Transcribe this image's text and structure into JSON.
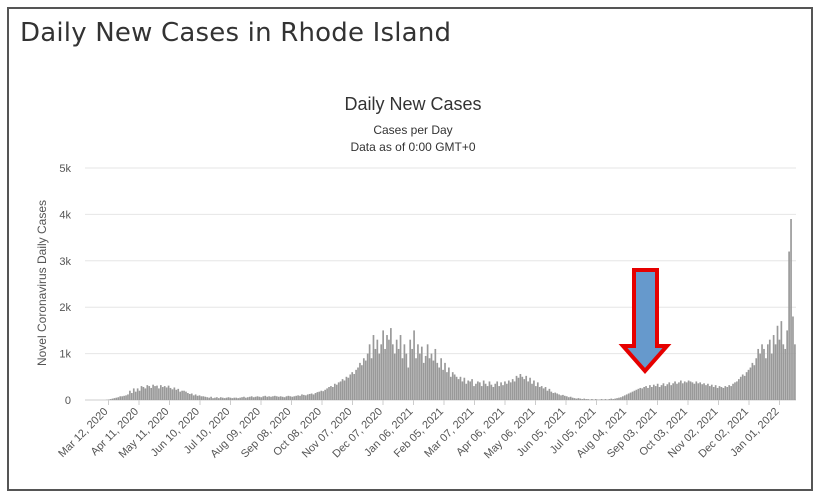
{
  "page": {
    "title": "Daily New Cases in Rhode Island"
  },
  "colors": {
    "bars": "#999999",
    "grid": "#e6e6e6",
    "arrow_fill": "#6699cc",
    "arrow_stroke": "#e60000"
  },
  "annotation": {
    "type": "arrow",
    "points_to": "Aug 04, 2021",
    "icon": "down-arrow-icon"
  },
  "chart_data": {
    "type": "bar",
    "title": "Daily New Cases",
    "subtitle": "Cases per Day",
    "subtitle2": "Data as of 0:00 GMT+0",
    "ylabel": "Novel Coronavirus Daily Cases",
    "xlabel": "",
    "ylim": [
      0,
      5000
    ],
    "yticks": [
      "0",
      "1k",
      "2k",
      "3k",
      "4k",
      "5k"
    ],
    "xticks": [
      "Mar 12, 2020",
      "Apr 11, 2020",
      "May 11, 2020",
      "Jun 10, 2020",
      "Jul 10, 2020",
      "Aug 09, 2020",
      "Sep 08, 2020",
      "Oct 08, 2020",
      "Nov 07, 2020",
      "Dec 07, 2020",
      "Jan 06, 2021",
      "Feb 05, 2021",
      "Mar 07, 2021",
      "Apr 06, 2021",
      "May 06, 2021",
      "Jun 05, 2021",
      "Jul 05, 2021",
      "Aug 04, 2021",
      "Sep 03, 2021",
      "Oct 03, 2021",
      "Nov 02, 2021",
      "Dec 02, 2021",
      "Jan 01, 2022"
    ],
    "x_start": "Mar 12, 2020",
    "x_end": "Jan 03, 2022",
    "grid": true,
    "legend": "none",
    "series": [
      {
        "values": [
          0,
          0,
          5,
          10,
          20,
          30,
          40,
          50,
          60,
          80,
          80,
          90,
          100,
          120,
          200,
          150,
          250,
          180,
          250,
          200,
          300,
          280,
          250,
          320,
          300,
          260,
          330,
          300,
          310,
          250,
          320,
          280,
          300,
          270,
          310,
          260,
          230,
          270,
          220,
          240,
          180,
          200,
          200,
          180,
          150,
          130,
          140,
          100,
          120,
          90,
          100,
          80,
          80,
          70,
          60,
          50,
          70,
          40,
          50,
          60,
          40,
          60,
          50,
          40,
          50,
          60,
          50,
          40,
          50,
          50,
          40,
          50,
          60,
          70,
          50,
          60,
          70,
          80,
          60,
          70,
          80,
          70,
          60,
          80,
          90,
          70,
          80,
          70,
          80,
          90,
          80,
          70,
          80,
          70,
          60,
          80,
          90,
          80,
          70,
          80,
          90,
          100,
          90,
          120,
          110,
          100,
          120,
          130,
          140,
          120,
          150,
          170,
          180,
          200,
          190,
          220,
          250,
          280,
          300,
          280,
          350,
          330,
          380,
          400,
          450,
          420,
          500,
          480,
          550,
          600,
          560,
          650,
          700,
          800,
          750,
          900,
          850,
          1000,
          1200,
          900,
          1400,
          1100,
          1300,
          1000,
          1200,
          1500,
          1100,
          1400,
          1300,
          1550,
          1200,
          1000,
          1300,
          1100,
          1400,
          900,
          1200,
          1000,
          700,
          1300,
          1100,
          1500,
          900,
          1200,
          1000,
          1150,
          800,
          950,
          1200,
          900,
          1000,
          850,
          1100,
          800,
          700,
          900,
          650,
          800,
          600,
          700,
          500,
          600,
          550,
          500,
          450,
          500,
          400,
          480,
          350,
          420,
          400,
          450,
          300,
          350,
          400,
          380,
          300,
          420,
          350,
          300,
          400,
          330,
          280,
          350,
          400,
          300,
          380,
          320,
          400,
          350,
          420,
          380,
          450,
          400,
          520,
          480,
          560,
          500,
          450,
          520,
          400,
          480,
          350,
          420,
          300,
          380,
          280,
          300,
          250,
          280,
          200,
          240,
          180,
          150,
          160,
          140,
          120,
          100,
          110,
          90,
          80,
          60,
          70,
          50,
          40,
          30,
          40,
          30,
          20,
          30,
          20,
          20,
          10,
          20,
          10,
          20,
          10,
          10,
          20,
          10,
          20,
          10,
          20,
          30,
          20,
          30,
          40,
          50,
          60,
          80,
          100,
          120,
          140,
          160,
          180,
          200,
          220,
          240,
          260,
          250,
          280,
          300,
          260,
          320,
          280,
          330,
          300,
          350,
          280,
          320,
          360,
          300,
          340,
          380,
          320,
          360,
          400,
          350,
          380,
          420,
          360,
          400,
          380,
          420,
          400,
          380,
          350,
          400,
          360,
          380,
          340,
          360,
          320,
          350,
          300,
          330,
          280,
          320,
          260,
          300,
          280,
          260,
          300,
          280,
          320,
          300,
          350,
          380,
          400,
          450,
          500,
          550,
          520,
          600,
          650,
          700,
          800,
          750,
          900,
          1100,
          1000,
          1200,
          1100,
          900,
          1200,
          1300,
          1000,
          1400,
          1200,
          1600,
          1300,
          1700,
          1200,
          1100,
          1500,
          3200,
          3900,
          1800,
          1200
        ]
      }
    ]
  }
}
